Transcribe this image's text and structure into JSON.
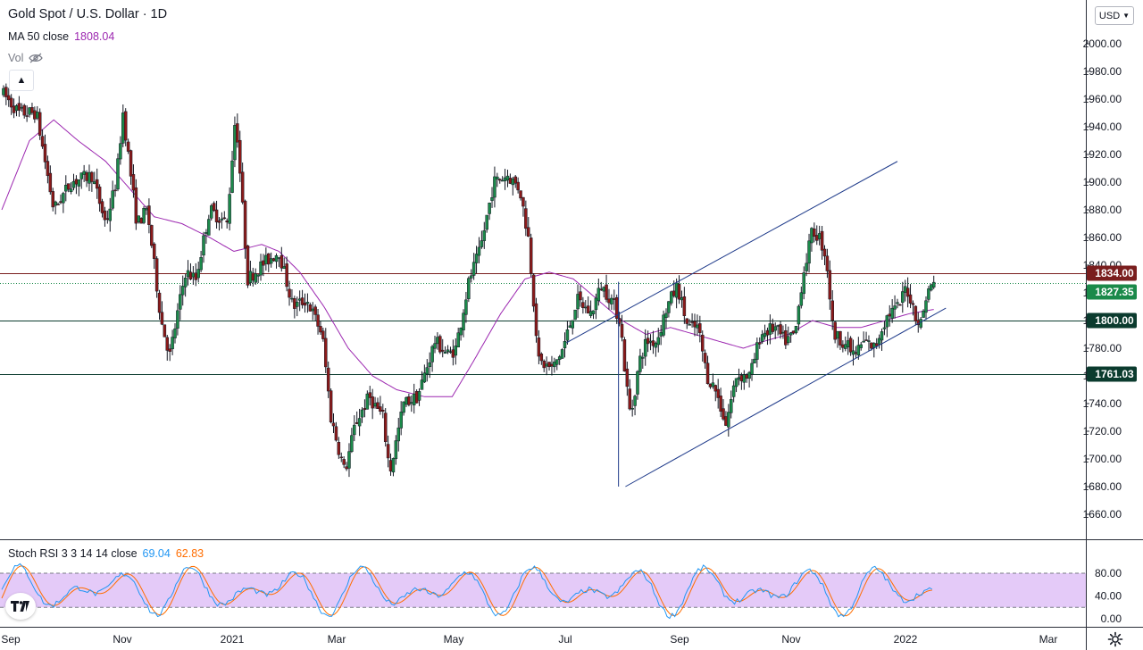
{
  "header": {
    "title": "Gold Spot / U.S. Dollar · 1D",
    "ma_label": "MA 50 close",
    "ma_value": "1808.04",
    "vol_label": "Vol",
    "currency": "USD"
  },
  "stoch": {
    "label": "Stoch RSI 3 3 14 14 close",
    "k_value": "69.04",
    "d_value": "62.83"
  },
  "colors": {
    "up": "#26a69a",
    "down": "#ef5350",
    "candle_body_up": "#1b8a4a",
    "candle_body_down": "#8b1a1a",
    "ma": "#9c27b0",
    "trendline": "#1e3a8a",
    "resistance": "#7a1e1e",
    "support": "#0b3b2e",
    "stoch_k": "#2196f3",
    "stoch_d": "#ff6d00",
    "stoch_band": "#e1c4f7"
  },
  "chart_data": {
    "type": "candlestick",
    "title": "Gold Spot / U.S. Dollar · 1D",
    "x_ticks": [
      "Sep",
      "Nov",
      "2021",
      "Mar",
      "May",
      "Jul",
      "Sep",
      "Nov",
      "2022",
      "Mar"
    ],
    "y_ticks": [
      "2000.00",
      "1980.00",
      "1960.00",
      "1940.00",
      "1920.00",
      "1900.00",
      "1880.00",
      "1860.00",
      "1840.00",
      "1820.00",
      "1800.00",
      "1780.00",
      "1760.00",
      "1740.00",
      "1720.00",
      "1700.00",
      "1680.00",
      "1660.00"
    ],
    "ylim": [
      1645,
      2017
    ],
    "price_path": [
      {
        "day": 0,
        "price": 1965
      },
      {
        "day": 10,
        "price": 1950
      },
      {
        "day": 20,
        "price": 1950
      },
      {
        "day": 30,
        "price": 1880
      },
      {
        "day": 40,
        "price": 1900
      },
      {
        "day": 52,
        "price": 1905
      },
      {
        "day": 60,
        "price": 1870
      },
      {
        "day": 66,
        "price": 1900
      },
      {
        "day": 70,
        "price": 1950
      },
      {
        "day": 78,
        "price": 1870
      },
      {
        "day": 84,
        "price": 1880
      },
      {
        "day": 92,
        "price": 1800
      },
      {
        "day": 97,
        "price": 1775
      },
      {
        "day": 106,
        "price": 1835
      },
      {
        "day": 112,
        "price": 1830
      },
      {
        "day": 120,
        "price": 1880
      },
      {
        "day": 130,
        "price": 1870
      },
      {
        "day": 135,
        "price": 1950
      },
      {
        "day": 142,
        "price": 1830
      },
      {
        "day": 150,
        "price": 1840
      },
      {
        "day": 160,
        "price": 1850
      },
      {
        "day": 168,
        "price": 1810
      },
      {
        "day": 176,
        "price": 1815
      },
      {
        "day": 185,
        "price": 1790
      },
      {
        "day": 190,
        "price": 1730
      },
      {
        "day": 198,
        "price": 1690
      },
      {
        "day": 204,
        "price": 1725
      },
      {
        "day": 212,
        "price": 1745
      },
      {
        "day": 220,
        "price": 1730
      },
      {
        "day": 224,
        "price": 1690
      },
      {
        "day": 232,
        "price": 1740
      },
      {
        "day": 240,
        "price": 1745
      },
      {
        "day": 250,
        "price": 1785
      },
      {
        "day": 258,
        "price": 1775
      },
      {
        "day": 262,
        "price": 1780
      },
      {
        "day": 270,
        "price": 1830
      },
      {
        "day": 276,
        "price": 1850
      },
      {
        "day": 284,
        "price": 1900
      },
      {
        "day": 292,
        "price": 1905
      },
      {
        "day": 299,
        "price": 1895
      },
      {
        "day": 304,
        "price": 1860
      },
      {
        "day": 310,
        "price": 1770
      },
      {
        "day": 318,
        "price": 1765
      },
      {
        "day": 324,
        "price": 1780
      },
      {
        "day": 332,
        "price": 1815
      },
      {
        "day": 340,
        "price": 1805
      },
      {
        "day": 346,
        "price": 1825
      },
      {
        "day": 352,
        "price": 1815
      },
      {
        "day": 357,
        "price": 1800
      },
      {
        "day": 360,
        "price": 1760
      },
      {
        "day": 363,
        "price": 1730
      },
      {
        "day": 368,
        "price": 1770
      },
      {
        "day": 372,
        "price": 1785
      },
      {
        "day": 378,
        "price": 1785
      },
      {
        "day": 384,
        "price": 1810
      },
      {
        "day": 390,
        "price": 1825
      },
      {
        "day": 396,
        "price": 1795
      },
      {
        "day": 402,
        "price": 1795
      },
      {
        "day": 407,
        "price": 1760
      },
      {
        "day": 412,
        "price": 1750
      },
      {
        "day": 418,
        "price": 1725
      },
      {
        "day": 424,
        "price": 1760
      },
      {
        "day": 432,
        "price": 1760
      },
      {
        "day": 438,
        "price": 1790
      },
      {
        "day": 446,
        "price": 1795
      },
      {
        "day": 452,
        "price": 1785
      },
      {
        "day": 458,
        "price": 1790
      },
      {
        "day": 462,
        "price": 1830
      },
      {
        "day": 468,
        "price": 1865
      },
      {
        "day": 472,
        "price": 1860
      },
      {
        "day": 476,
        "price": 1845
      },
      {
        "day": 480,
        "price": 1790
      },
      {
        "day": 486,
        "price": 1785
      },
      {
        "day": 492,
        "price": 1775
      },
      {
        "day": 498,
        "price": 1785
      },
      {
        "day": 504,
        "price": 1780
      },
      {
        "day": 508,
        "price": 1795
      },
      {
        "day": 512,
        "price": 1805
      },
      {
        "day": 518,
        "price": 1810
      },
      {
        "day": 522,
        "price": 1825
      },
      {
        "day": 526,
        "price": 1810
      },
      {
        "day": 530,
        "price": 1795
      },
      {
        "day": 534,
        "price": 1820
      },
      {
        "day": 538,
        "price": 1827
      }
    ],
    "ma_path": [
      {
        "day": 0,
        "price": 1880
      },
      {
        "day": 16,
        "price": 1930
      },
      {
        "day": 30,
        "price": 1945
      },
      {
        "day": 44,
        "price": 1930
      },
      {
        "day": 60,
        "price": 1915
      },
      {
        "day": 74,
        "price": 1895
      },
      {
        "day": 88,
        "price": 1875
      },
      {
        "day": 104,
        "price": 1870
      },
      {
        "day": 120,
        "price": 1860
      },
      {
        "day": 134,
        "price": 1850
      },
      {
        "day": 150,
        "price": 1855
      },
      {
        "day": 160,
        "price": 1850
      },
      {
        "day": 172,
        "price": 1835
      },
      {
        "day": 186,
        "price": 1810
      },
      {
        "day": 200,
        "price": 1780
      },
      {
        "day": 214,
        "price": 1760
      },
      {
        "day": 228,
        "price": 1750
      },
      {
        "day": 244,
        "price": 1745
      },
      {
        "day": 260,
        "price": 1745
      },
      {
        "day": 272,
        "price": 1770
      },
      {
        "day": 288,
        "price": 1805
      },
      {
        "day": 302,
        "price": 1830
      },
      {
        "day": 316,
        "price": 1835
      },
      {
        "day": 330,
        "price": 1830
      },
      {
        "day": 344,
        "price": 1815
      },
      {
        "day": 358,
        "price": 1800
      },
      {
        "day": 372,
        "price": 1790
      },
      {
        "day": 386,
        "price": 1795
      },
      {
        "day": 400,
        "price": 1790
      },
      {
        "day": 414,
        "price": 1785
      },
      {
        "day": 428,
        "price": 1780
      },
      {
        "day": 440,
        "price": 1785
      },
      {
        "day": 454,
        "price": 1790
      },
      {
        "day": 468,
        "price": 1800
      },
      {
        "day": 482,
        "price": 1795
      },
      {
        "day": 496,
        "price": 1795
      },
      {
        "day": 510,
        "price": 1800
      },
      {
        "day": 524,
        "price": 1805
      },
      {
        "day": 538,
        "price": 1808
      }
    ],
    "price_lines": [
      {
        "value": 1834.0,
        "label": "1834.00",
        "color": "#7a1e1e",
        "style": "solid"
      },
      {
        "value": 1827.35,
        "label": "1827.35",
        "color": "#1b8a4a",
        "style": "dotted"
      },
      {
        "value": 1800.0,
        "label": "1800.00",
        "color": "#0b3b2e",
        "style": "solid"
      },
      {
        "value": 1761.03,
        "label": "1761.03",
        "color": "#0b3b2e",
        "style": "solid"
      }
    ],
    "trendlines": [
      {
        "from": {
          "day": 360,
          "price": 1680
        },
        "to": {
          "day": 545,
          "price": 1809
        }
      },
      {
        "from": {
          "day": 326,
          "price": 1784
        },
        "to": {
          "day": 517,
          "price": 1915
        }
      },
      {
        "from": {
          "day": 356,
          "price": 1828
        },
        "to": {
          "day": 356,
          "price": 1680
        }
      }
    ],
    "stoch_rsi": {
      "y_ticks": [
        "80.00",
        "40.00",
        "0.00"
      ],
      "upper": 80,
      "lower": 20,
      "k_value": 69.04,
      "d_value": 62.83
    },
    "grid": false
  }
}
